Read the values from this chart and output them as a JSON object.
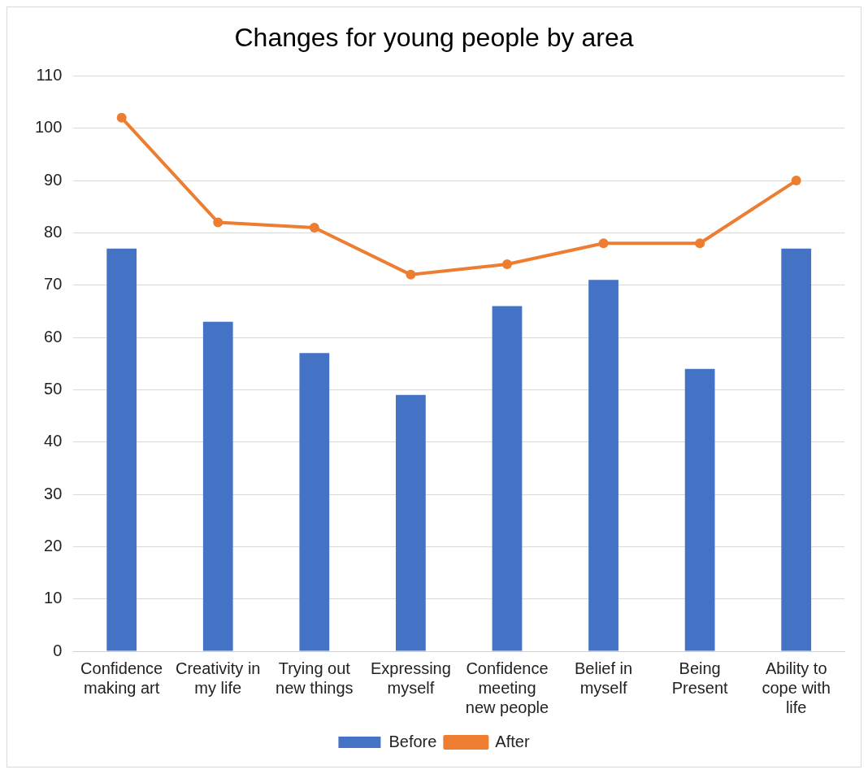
{
  "chart_data": {
    "type": "bar",
    "title": "Changes for young people by area",
    "categories": [
      "Confidence making art",
      "Creativity in my life",
      "Trying out new things",
      "Expressing myself",
      "Confidence meeting new people",
      "Belief in myself",
      "Being Present",
      "Ability to cope with life"
    ],
    "series": [
      {
        "name": "Before",
        "color": "#4472c4",
        "values": [
          77,
          63,
          57,
          49,
          66,
          71,
          54,
          77
        ]
      },
      {
        "name": "After",
        "type": "line",
        "color": "#ed7d31",
        "values": [
          102,
          82,
          81,
          72,
          74,
          78,
          78,
          90
        ]
      }
    ],
    "ylim": [
      0,
      110
    ],
    "yticks": [
      0,
      10,
      20,
      30,
      40,
      50,
      60,
      70,
      80,
      90,
      100,
      110
    ],
    "grid": "y",
    "legend": "bottom",
    "marker": "circle",
    "line_style": "solid"
  }
}
